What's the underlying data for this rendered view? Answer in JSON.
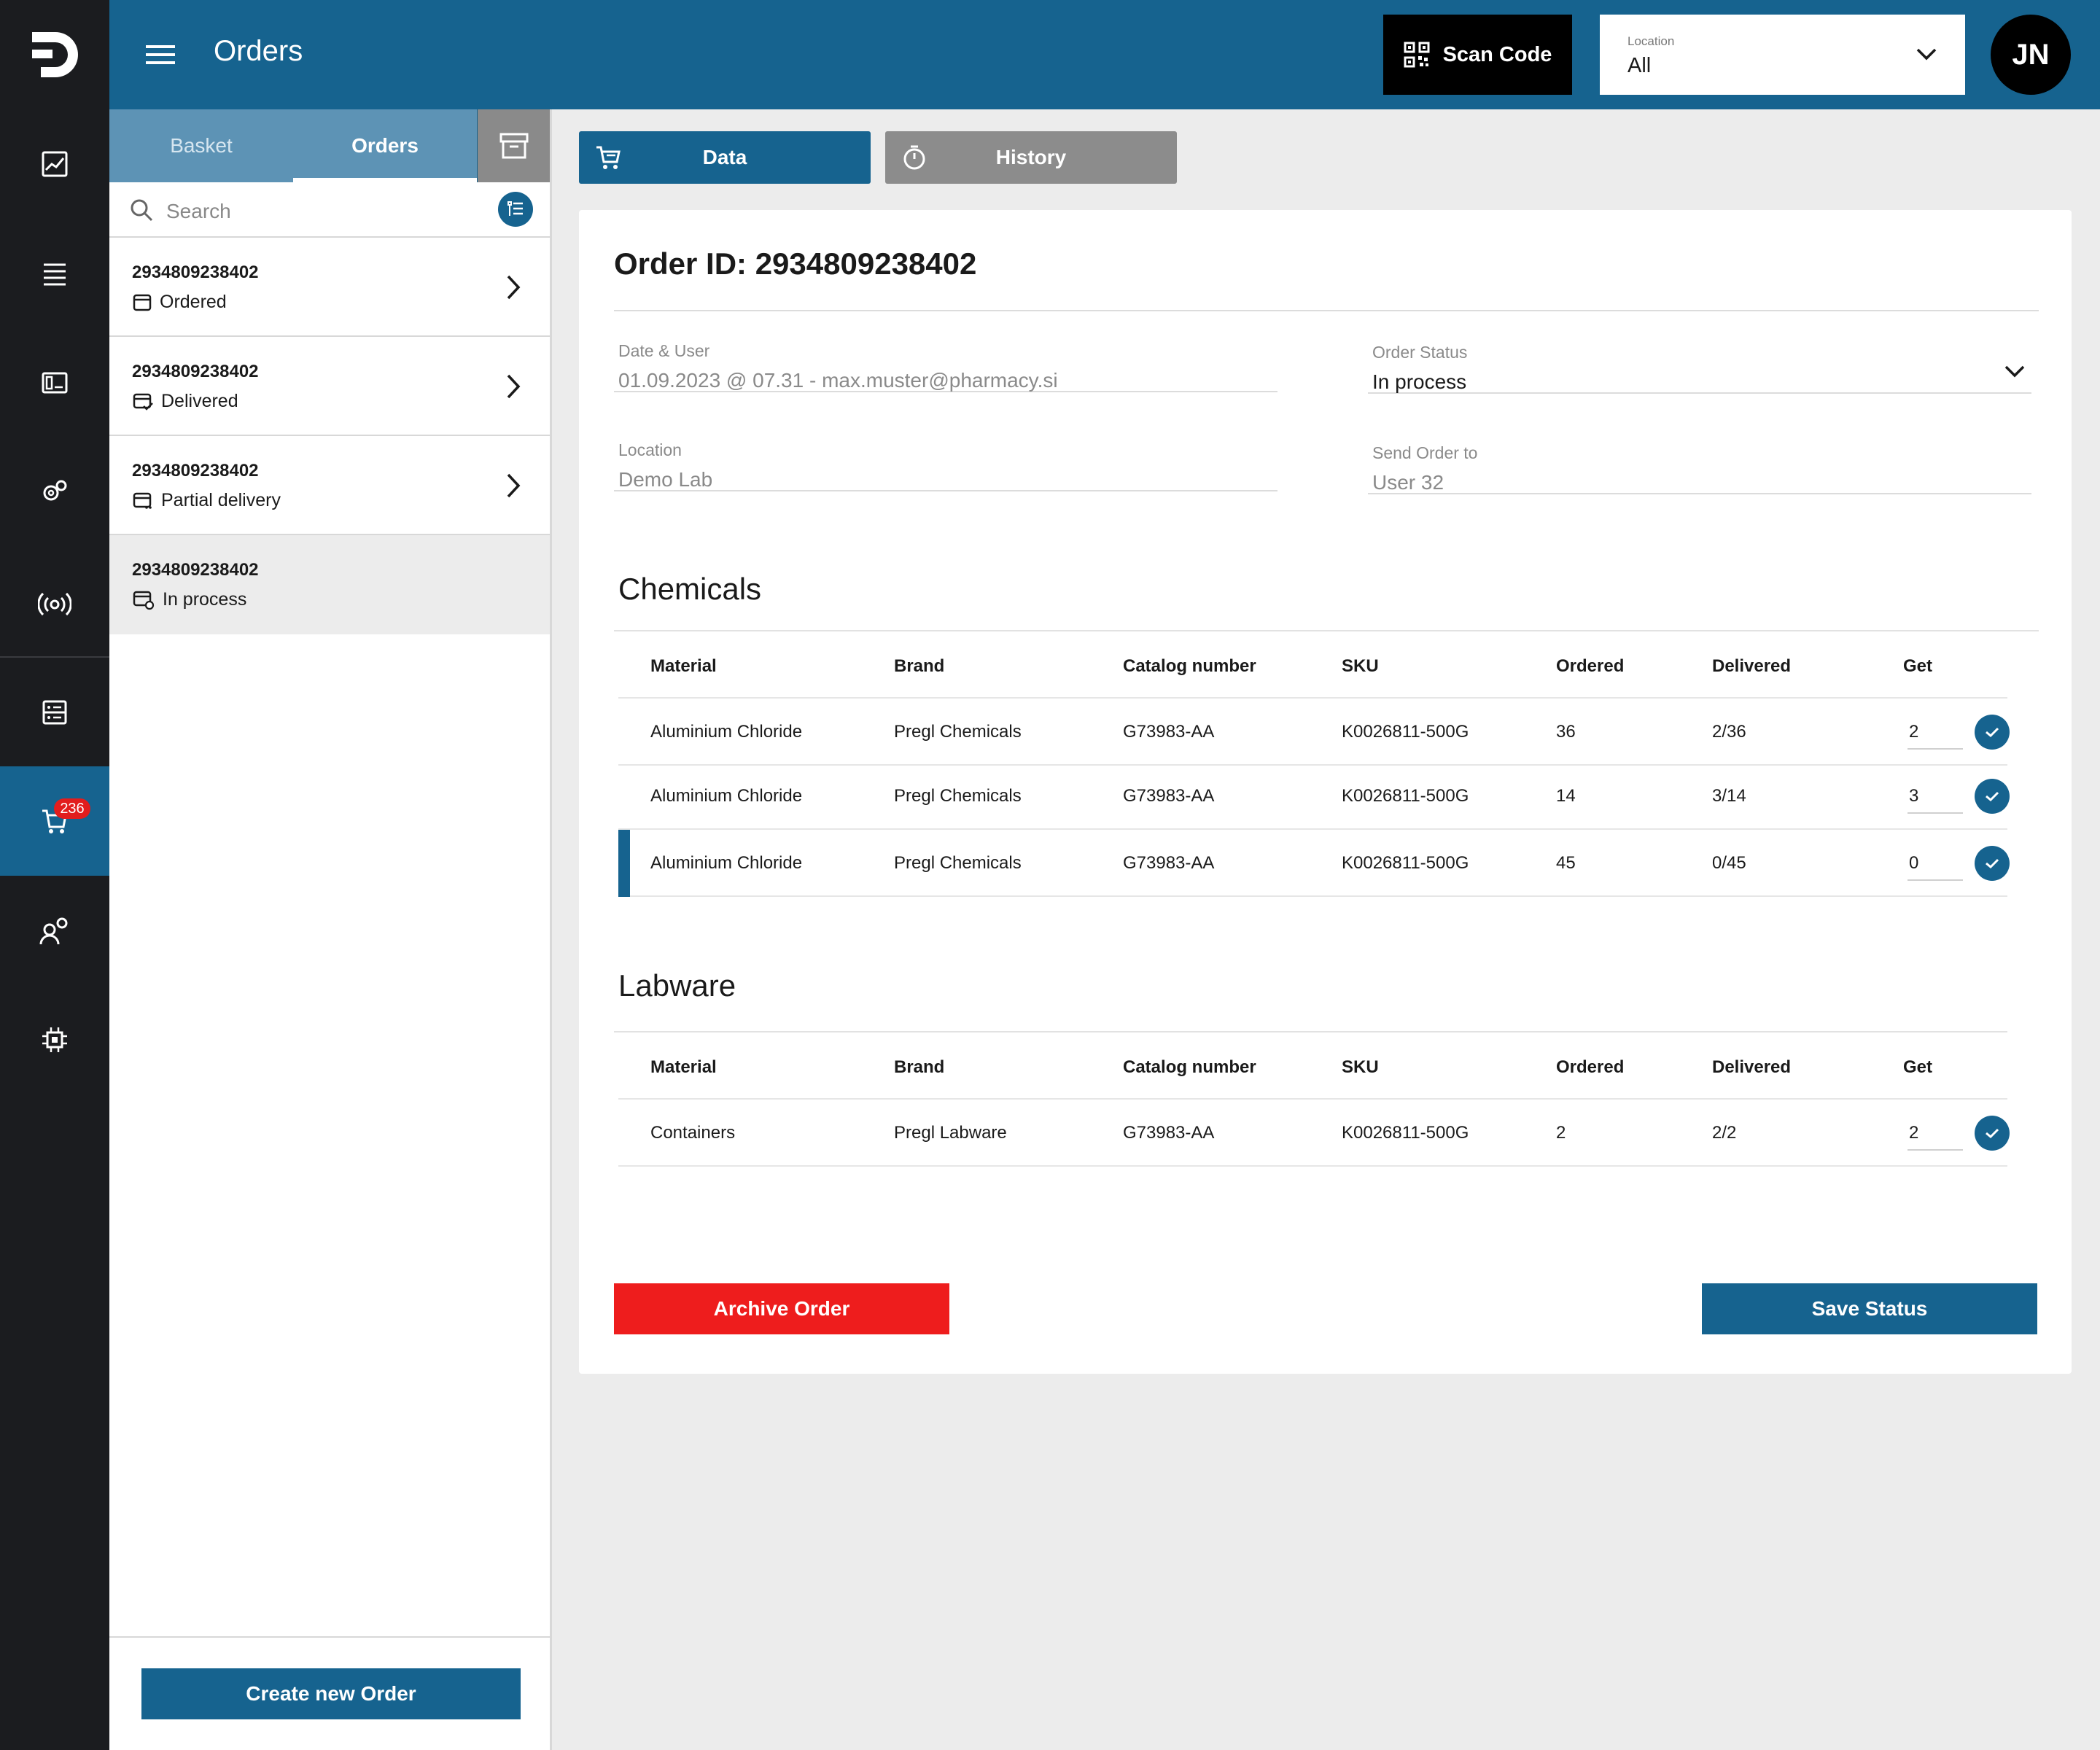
{
  "topbar": {
    "title": "Orders",
    "scan_label": "Scan Code",
    "location_label": "Location",
    "location_value": "All",
    "avatar_initials": "JN"
  },
  "rail": {
    "cart_badge": "236"
  },
  "list": {
    "tabs": [
      "Basket",
      "Orders"
    ],
    "search_placeholder": "Search",
    "items": [
      {
        "id": "2934809238402",
        "status": "Ordered"
      },
      {
        "id": "2934809238402",
        "status": "Delivered"
      },
      {
        "id": "2934809238402",
        "status": "Partial delivery"
      },
      {
        "id": "2934809238402",
        "status": "In process"
      }
    ],
    "create_label": "Create new Order"
  },
  "detail": {
    "tabs": [
      "Data",
      "History"
    ],
    "title": "Order ID: 2934809238402",
    "fields": {
      "date_user_label": "Date & User",
      "date_user_value": "01.09.2023 @ 07.31 - max.muster@pharmacy.si",
      "order_status_label": "Order Status",
      "order_status_value": "In process",
      "location_label": "Location",
      "location_value": "Demo Lab",
      "send_to_label": "Send Order to",
      "send_to_value": "User 32"
    },
    "columns": [
      "Material",
      "Brand",
      "Catalog number",
      "SKU",
      "Ordered",
      "Delivered",
      "Get"
    ],
    "chemicals": {
      "title": "Chemicals",
      "rows": [
        {
          "material": "Aluminium Chloride",
          "brand": "Pregl Chemicals",
          "catalog": "G73983-AA",
          "sku": "K0026811-500G",
          "ordered": "36",
          "delivered": "2/36",
          "get": "2"
        },
        {
          "material": "Aluminium Chloride",
          "brand": "Pregl Chemicals",
          "catalog": "G73983-AA",
          "sku": "K0026811-500G",
          "ordered": "14",
          "delivered": "3/14",
          "get": "3"
        },
        {
          "material": "Aluminium Chloride",
          "brand": "Pregl Chemicals",
          "catalog": "G73983-AA",
          "sku": "K0026811-500G",
          "ordered": "45",
          "delivered": "0/45",
          "get": "0"
        }
      ]
    },
    "labware": {
      "title": "Labware",
      "rows": [
        {
          "material": "Containers",
          "brand": "Pregl Labware",
          "catalog": "G73983-AA",
          "sku": "K0026811-500G",
          "ordered": "2",
          "delivered": "2/2",
          "get": "2"
        }
      ]
    },
    "archive_label": "Archive Order",
    "save_label": "Save Status"
  },
  "colors": {
    "primary": "#16638f",
    "danger": "#ee1d1d",
    "rail": "#1b1c1f"
  }
}
